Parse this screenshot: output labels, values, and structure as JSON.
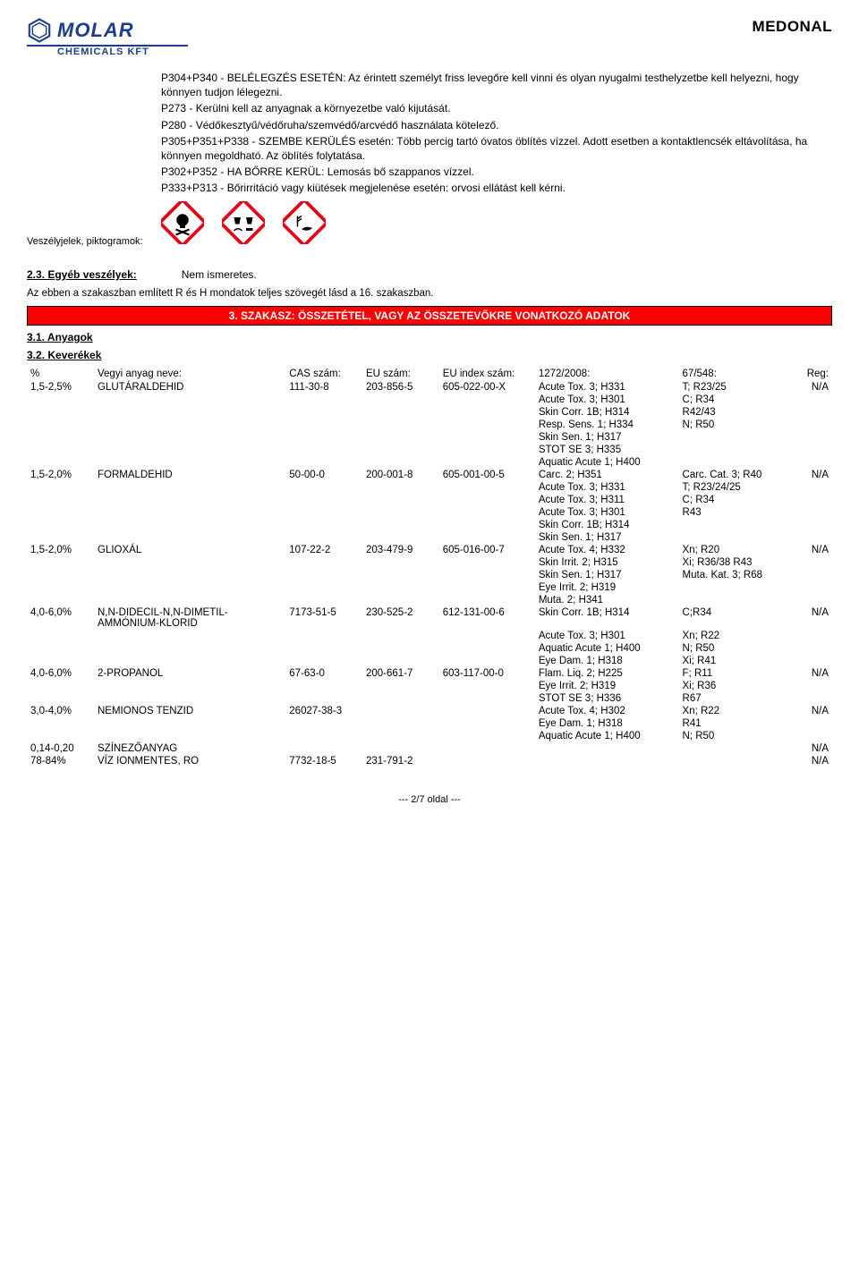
{
  "colors": {
    "brand_blue": "#1a3d8f",
    "section_bar_bg": "#ff0000",
    "section_bar_text": "#ffffff",
    "hazard_red": "#e30613"
  },
  "header": {
    "logo_main": "MOLAR",
    "logo_sub": "CHEMICALS KFT",
    "doc_title": "MEDONAL"
  },
  "precaution": {
    "left_label": "Veszélyjelek, piktogramok:",
    "lines": [
      "P304+P340 - BELÉLEGZÉS ESETÉN: Az érintett személyt friss levegőre kell vinni és olyan nyugalmi testhelyzetbe kell helyezni, hogy könnyen tudjon lélegezni.",
      "P273 - Kerülni kell az anyagnak a környezetbe való kijutását.",
      "P280 - Védőkesztyű/védőruha/szemvédő/arcvédő  használata kötelező.",
      "P305+P351+P338 - SZEMBE KERÜLÉS esetén: Több percig tartó óvatos öblítés vízzel. Adott esetben a kontaktlencsék eltávolítása, ha könnyen megoldható. Az öblítés folytatása.",
      "P302+P352 - HA BŐRRE KERÜL: Lemosás bő szappanos vízzel.",
      "P333+P313 - Bőrirritáció vagy kiütések megjelenése esetén: orvosi ellátást kell kérni."
    ]
  },
  "section23": {
    "heading": "2.3. Egyéb veszélyek:",
    "value": "Nem ismeretes."
  },
  "note_text": "Az ebben a szakaszban említett R és H mondatok teljes szövegét lásd a 16. szakaszban.",
  "section3_bar": "3. SZAKASZ: ÖSSZETÉTEL, VAGY AZ ÖSSZETEVŐKRE VONATKOZÓ ADATOK",
  "sub31": "3.1. Anyagok",
  "sub32": "3.2. Keverékek",
  "table": {
    "headers": {
      "pct": "%",
      "name": "Vegyi anyag neve:",
      "cas": "CAS szám:",
      "eu": "EU szám:",
      "idx": "EU index szám:",
      "c1272": "1272/2008:",
      "c67": "67/548:",
      "reg": "Reg:"
    },
    "rows": [
      {
        "pct": "1,5-2,5%",
        "name": "GLUTÁRALDEHID",
        "cas": "111-30-8",
        "eu": "203-856-5",
        "idx": "605-022-00-X",
        "reg": "N/A",
        "classifications": [
          {
            "c1272": "Acute Tox. 3;  H331",
            "c67": "T; R23/25"
          },
          {
            "c1272": "Acute Tox. 3;  H301",
            "c67": "C; R34"
          },
          {
            "c1272": "Skin Corr. 1B; H314",
            "c67": "R42/43"
          },
          {
            "c1272": "Resp. Sens. 1;  H334",
            "c67": "N; R50"
          },
          {
            "c1272": "Skin Sen. 1;  H317",
            "c67": ""
          },
          {
            "c1272": "STOT SE 3;  H335",
            "c67": ""
          },
          {
            "c1272": "Aquatic Acute 1; H400",
            "c67": ""
          }
        ]
      },
      {
        "pct": "1,5-2,0%",
        "name": "FORMALDEHID",
        "cas": "50-00-0",
        "eu": "200-001-8",
        "idx": "605-001-00-5",
        "reg": "N/A",
        "classifications": [
          {
            "c1272": "Carc. 2; H351",
            "c67": "Carc. Cat. 3; R40"
          },
          {
            "c1272": "Acute Tox. 3;  H331",
            "c67": "T; R23/24/25"
          },
          {
            "c1272": "Acute Tox. 3;  H311",
            "c67": "C; R34"
          },
          {
            "c1272": "Acute Tox. 3;  H301",
            "c67": "R43"
          },
          {
            "c1272": "Skin Corr. 1B; H314",
            "c67": ""
          },
          {
            "c1272": "Skin Sen. 1;  H317",
            "c67": ""
          }
        ]
      },
      {
        "pct": "1,5-2,0%",
        "name": "GLIOXÁL",
        "cas": "107-22-2",
        "eu": "203-479-9",
        "idx": "605-016-00-7",
        "reg": "N/A",
        "classifications": [
          {
            "c1272": "Acute Tox. 4; H332",
            "c67": "Xn; R20"
          },
          {
            "c1272": "Skin Irrit. 2; H315",
            "c67": "Xi; R36/38  R43"
          },
          {
            "c1272": "Skin Sen. 1; H317",
            "c67": "Muta. Kat. 3; R68"
          },
          {
            "c1272": "Eye Irrit. 2; H319",
            "c67": ""
          },
          {
            "c1272": "Muta. 2; H341",
            "c67": ""
          }
        ]
      },
      {
        "pct": "4,0-6,0%",
        "name": "N,N-DIDECIL-N,N-DIMETIL-AMMÓNIUM-KLORID",
        "cas": "7173-51-5",
        "eu": "230-525-2",
        "idx": "612-131-00-6",
        "reg": "N/A",
        "classifications": [
          {
            "c1272": "Skin Corr. 1B; H314",
            "c67": "C;R34"
          },
          {
            "c1272": "Acute Tox. 3; H301",
            "c67": "Xn; R22"
          },
          {
            "c1272": "Aquatic Acute 1; H400",
            "c67": "N; R50"
          },
          {
            "c1272": "Eye Dam. 1; H318",
            "c67": "Xi; R41"
          }
        ]
      },
      {
        "pct": "4,0-6,0%",
        "name": "2-PROPANOL",
        "cas": "67-63-0",
        "eu": "200-661-7",
        "idx": "603-117-00-0",
        "reg": "N/A",
        "classifications": [
          {
            "c1272": "Flam. Liq. 2; H225",
            "c67": "F; R11"
          },
          {
            "c1272": "Eye Irrit. 2; H319",
            "c67": "Xi; R36"
          },
          {
            "c1272": "STOT SE 3; H336",
            "c67": "R67"
          }
        ]
      },
      {
        "pct": "3,0-4,0%",
        "name": "NEMIONOS TENZID",
        "cas": "26027-38-3",
        "eu": "",
        "idx": "",
        "reg": "N/A",
        "classifications": [
          {
            "c1272": "Acute Tox. 4; H302",
            "c67": "Xn; R22"
          },
          {
            "c1272": "Eye Dam. 1; H318",
            "c67": "R41"
          },
          {
            "c1272": "Aquatic Acute 1; H400",
            "c67": "N; R50"
          }
        ]
      },
      {
        "pct": "0,14-0,20",
        "name": "SZÍNEZŐANYAG",
        "cas": "",
        "eu": "",
        "idx": "",
        "reg": "N/A",
        "classifications": []
      },
      {
        "pct": "78-84%",
        "name": "VÍZ IONMENTES, RO",
        "cas": "7732-18-5",
        "eu": "231-791-2",
        "idx": "",
        "reg": "N/A",
        "classifications": []
      }
    ]
  },
  "footer": "--- 2/7 oldal ---"
}
